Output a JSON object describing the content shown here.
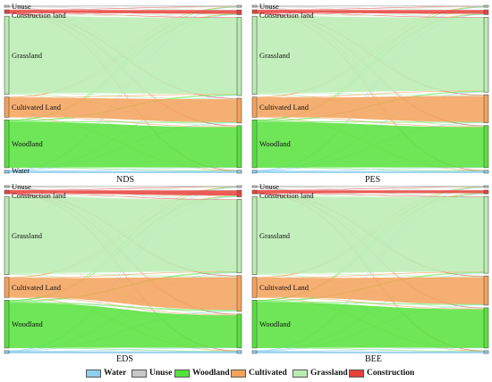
{
  "land_types": [
    {
      "key": "water",
      "label": "Water",
      "color": "#8ecfef"
    },
    {
      "key": "unuse",
      "label": "Unuse",
      "color": "#c8c8c8"
    },
    {
      "key": "woodland",
      "label": "Woodland",
      "color": "#55e23a"
    },
    {
      "key": "cultivated",
      "label": "Cultivated",
      "color": "#f5a15a"
    },
    {
      "key": "grassland",
      "label": "Grassland",
      "color": "#b9ecb0"
    },
    {
      "key": "construction",
      "label": "Construction",
      "color": "#e8403a"
    }
  ],
  "panels": [
    {
      "title": "NDS",
      "left_labels": [
        {
          "key": "unuse",
          "text": "Unuse"
        },
        {
          "key": "construction",
          "text": "Construction land"
        },
        {
          "key": "grassland",
          "text": "Grassland"
        },
        {
          "key": "cultivated",
          "text": "Cultivated Land"
        },
        {
          "key": "woodland",
          "text": "Woodland"
        },
        {
          "key": "water",
          "text": "Water"
        }
      ],
      "left_sizes": {
        "unuse": 2,
        "construction": 4,
        "grassland": 85,
        "cultivated": 22,
        "woodland": 52,
        "water": 3
      },
      "right_sizes": {
        "unuse": 2,
        "construction": 5,
        "grassland": 82,
        "cultivated": 26,
        "woodland": 44,
        "water": 3
      }
    },
    {
      "title": "PES",
      "left_labels": [
        {
          "key": "unuse",
          "text": "Unuse"
        },
        {
          "key": "construction",
          "text": "Construction land"
        },
        {
          "key": "grassland",
          "text": "Grassland"
        },
        {
          "key": "cultivated",
          "text": "Cultivated Land"
        },
        {
          "key": "woodland",
          "text": "Woodland"
        },
        {
          "key": "water",
          "text": ""
        }
      ],
      "left_sizes": {
        "unuse": 2,
        "construction": 4,
        "grassland": 85,
        "cultivated": 22,
        "woodland": 52,
        "water": 3
      },
      "right_sizes": {
        "unuse": 2,
        "construction": 5,
        "grassland": 80,
        "cultivated": 30,
        "woodland": 45,
        "water": 3
      }
    },
    {
      "title": "EDS",
      "left_labels": [
        {
          "key": "unuse",
          "text": "Unuse"
        },
        {
          "key": "construction",
          "text": "Construction land"
        },
        {
          "key": "grassland",
          "text": "Grassland"
        },
        {
          "key": "cultivated",
          "text": "Cultivated Land"
        },
        {
          "key": "woodland",
          "text": "Woodland"
        },
        {
          "key": "water",
          "text": ""
        }
      ],
      "left_sizes": {
        "unuse": 2,
        "construction": 4,
        "grassland": 85,
        "cultivated": 22,
        "woodland": 52,
        "water": 3
      },
      "right_sizes": {
        "unuse": 2,
        "construction": 7,
        "grassland": 78,
        "cultivated": 38,
        "woodland": 36,
        "water": 3
      }
    },
    {
      "title": "BEE",
      "left_labels": [
        {
          "key": "unuse",
          "text": "Unuse"
        },
        {
          "key": "construction",
          "text": "Construction land"
        },
        {
          "key": "grassland",
          "text": "Grassland"
        },
        {
          "key": "cultivated",
          "text": "Cultivated Land"
        },
        {
          "key": "woodland",
          "text": "Woodland"
        },
        {
          "key": "water",
          "text": ""
        }
      ],
      "left_sizes": {
        "unuse": 2,
        "construction": 4,
        "grassland": 85,
        "cultivated": 22,
        "woodland": 52,
        "water": 3
      },
      "right_sizes": {
        "unuse": 2,
        "construction": 4,
        "grassland": 84,
        "cultivated": 32,
        "woodland": 44,
        "water": 3
      }
    }
  ]
}
